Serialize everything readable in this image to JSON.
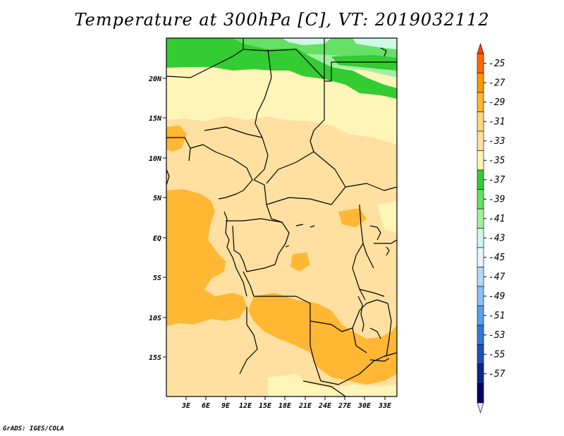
{
  "title": "Temperature at 300hPa [C], VT: 2019032112",
  "credit": "GrADS: IGES/COLA",
  "map": {
    "lon_labels": [
      "3E",
      "6E",
      "9E",
      "12E",
      "15E",
      "18E",
      "21E",
      "24E",
      "27E",
      "30E",
      "33E"
    ],
    "lat_labels": [
      "20N",
      "15N",
      "10N",
      "5N",
      "EQ",
      "5S",
      "10S",
      "15S"
    ]
  },
  "colorbar": {
    "labels": [
      "-25",
      "-27",
      "-29",
      "-31",
      "-33",
      "-35",
      "-37",
      "-39",
      "-41",
      "-43",
      "-45",
      "-47",
      "-49",
      "-51",
      "-53",
      "-55",
      "-57"
    ],
    "colors": [
      "#ff6a00",
      "#ff9a00",
      "#ffb734",
      "#ffd87a",
      "#ffe0a0",
      "#fff5b8",
      "#33cc33",
      "#66e066",
      "#a0f0a0",
      "#d0f8e8",
      "#e6f5ff",
      "#b4d8f8",
      "#8cc0f0",
      "#5aa0e8",
      "#3478d8",
      "#1e50b8",
      "#0a2888",
      "#000066"
    ],
    "top_color": "#ff4500",
    "bottom_color": "#e6e6fa"
  },
  "colors": {
    "band_green_dark": "#33cc33",
    "band_green_mid": "#66e066",
    "band_green_light": "#a0f0a0",
    "band_lightest": "#d0f8e8",
    "pale_yellow": "#fff5b8",
    "yellow": "#ffd87a",
    "orange": "#ffb734"
  }
}
